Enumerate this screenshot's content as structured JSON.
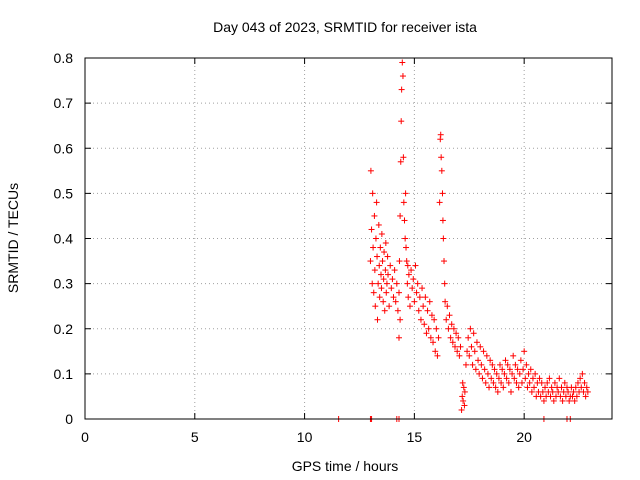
{
  "chart_data": {
    "type": "scatter",
    "title": "Day 043 of 2023, SRMTID for receiver ista",
    "xlabel": "GPS time / hours",
    "ylabel": "SRMTID / TECUs",
    "xlim": [
      0,
      24
    ],
    "ylim": [
      0,
      0.8
    ],
    "xticks": [
      0,
      5,
      10,
      15,
      20
    ],
    "xtick_labels": [
      "0",
      "5",
      "10",
      "15",
      "20"
    ],
    "yticks": [
      0,
      0.1,
      0.2,
      0.3,
      0.4,
      0.5,
      0.6,
      0.7,
      0.8
    ],
    "ytick_labels": [
      "0",
      "0.1",
      "0.2",
      "0.3",
      "0.4",
      "0.5",
      "0.6",
      "0.7",
      "0.8"
    ],
    "grid": true,
    "marker": "plus",
    "color": "#ff0000",
    "series": [
      {
        "name": "SRMTID",
        "x": [
          11.55,
          13.0,
          13.05,
          14.2,
          14.3,
          20.9,
          21.95,
          22.1,
          13.0,
          13.02,
          13.05,
          13.08,
          13.1,
          13.12,
          13.15,
          13.18,
          13.2,
          13.22,
          13.25,
          13.28,
          13.3,
          13.32,
          13.35,
          13.38,
          13.4,
          13.42,
          13.45,
          13.48,
          13.5,
          13.52,
          13.55,
          13.58,
          13.6,
          13.62,
          13.65,
          13.68,
          13.7,
          13.72,
          13.75,
          13.78,
          13.8,
          13.85,
          13.9,
          13.95,
          14.0,
          14.05,
          14.1,
          14.15,
          14.2,
          14.25,
          14.3,
          14.35,
          14.3,
          14.32,
          14.35,
          14.38,
          14.4,
          14.42,
          14.45,
          14.48,
          14.5,
          14.52,
          14.55,
          14.58,
          14.6,
          14.62,
          14.65,
          14.68,
          14.7,
          14.72,
          14.75,
          14.8,
          14.85,
          14.9,
          14.95,
          15.0,
          15.05,
          15.1,
          15.15,
          15.2,
          15.25,
          15.3,
          15.35,
          15.4,
          15.45,
          15.5,
          15.55,
          15.6,
          15.65,
          15.7,
          15.75,
          15.8,
          15.85,
          15.9,
          15.95,
          16.0,
          16.05,
          16.1,
          16.15,
          16.18,
          16.2,
          16.22,
          16.25,
          16.28,
          16.3,
          16.32,
          16.35,
          16.38,
          16.4,
          16.45,
          16.5,
          16.55,
          16.6,
          16.65,
          16.7,
          16.75,
          16.8,
          16.85,
          16.9,
          16.95,
          17.0,
          17.05,
          17.1,
          17.15,
          17.18,
          17.2,
          17.22,
          17.25,
          17.28,
          17.3,
          17.35,
          17.4,
          17.45,
          17.5,
          17.55,
          17.6,
          17.65,
          17.7,
          17.75,
          17.8,
          17.85,
          17.9,
          17.95,
          18.0,
          18.05,
          18.1,
          18.15,
          18.2,
          18.25,
          18.3,
          18.35,
          18.4,
          18.45,
          18.5,
          18.55,
          18.6,
          18.65,
          18.7,
          18.75,
          18.8,
          18.85,
          18.9,
          18.95,
          19.0,
          19.05,
          19.1,
          19.15,
          19.2,
          19.25,
          19.3,
          19.35,
          19.4,
          19.45,
          19.5,
          19.55,
          19.6,
          19.65,
          19.7,
          19.75,
          19.8,
          19.85,
          19.9,
          19.95,
          20.0,
          20.05,
          20.1,
          20.15,
          20.2,
          20.25,
          20.3,
          20.35,
          20.4,
          20.45,
          20.5,
          20.55,
          20.6,
          20.65,
          20.7,
          20.75,
          20.8,
          20.85,
          20.9,
          20.95,
          21.0,
          21.05,
          21.1,
          21.15,
          21.2,
          21.25,
          21.3,
          21.35,
          21.4,
          21.45,
          21.5,
          21.55,
          21.6,
          21.65,
          21.7,
          21.75,
          21.8,
          21.85,
          21.9,
          21.95,
          22.0,
          22.05,
          22.1,
          22.15,
          22.2,
          22.25,
          22.3,
          22.35,
          22.4,
          22.45,
          22.5,
          22.55,
          22.6,
          22.65,
          22.7,
          22.75,
          22.8,
          22.85,
          22.9
        ],
        "y": [
          0.0,
          0.0,
          0.0,
          0.0,
          0.0,
          0.0,
          0.0,
          0.0,
          0.35,
          0.55,
          0.42,
          0.3,
          0.5,
          0.38,
          0.28,
          0.45,
          0.33,
          0.25,
          0.4,
          0.48,
          0.36,
          0.22,
          0.3,
          0.43,
          0.34,
          0.27,
          0.38,
          0.32,
          0.29,
          0.41,
          0.35,
          0.26,
          0.31,
          0.37,
          0.24,
          0.33,
          0.39,
          0.28,
          0.3,
          0.36,
          0.32,
          0.25,
          0.34,
          0.29,
          0.31,
          0.27,
          0.33,
          0.26,
          0.3,
          0.24,
          0.28,
          0.22,
          0.18,
          0.35,
          0.45,
          0.57,
          0.66,
          0.73,
          0.79,
          0.76,
          0.58,
          0.48,
          0.44,
          0.4,
          0.5,
          0.38,
          0.35,
          0.3,
          0.34,
          0.27,
          0.32,
          0.25,
          0.33,
          0.29,
          0.31,
          0.26,
          0.34,
          0.28,
          0.3,
          0.24,
          0.27,
          0.22,
          0.29,
          0.25,
          0.21,
          0.27,
          0.19,
          0.24,
          0.2,
          0.26,
          0.18,
          0.23,
          0.17,
          0.22,
          0.15,
          0.2,
          0.14,
          0.18,
          0.48,
          0.62,
          0.63,
          0.58,
          0.55,
          0.5,
          0.44,
          0.4,
          0.35,
          0.3,
          0.26,
          0.22,
          0.25,
          0.2,
          0.23,
          0.18,
          0.21,
          0.17,
          0.2,
          0.16,
          0.19,
          0.15,
          0.18,
          0.14,
          0.16,
          0.02,
          0.05,
          0.08,
          0.04,
          0.07,
          0.03,
          0.06,
          0.12,
          0.15,
          0.18,
          0.14,
          0.2,
          0.16,
          0.12,
          0.19,
          0.15,
          0.11,
          0.17,
          0.13,
          0.1,
          0.16,
          0.12,
          0.09,
          0.15,
          0.11,
          0.08,
          0.14,
          0.1,
          0.07,
          0.13,
          0.09,
          0.12,
          0.08,
          0.11,
          0.07,
          0.1,
          0.06,
          0.09,
          0.12,
          0.08,
          0.11,
          0.07,
          0.1,
          0.13,
          0.09,
          0.12,
          0.08,
          0.11,
          0.06,
          0.1,
          0.14,
          0.09,
          0.12,
          0.08,
          0.11,
          0.07,
          0.1,
          0.13,
          0.08,
          0.11,
          0.15,
          0.09,
          0.12,
          0.07,
          0.1,
          0.08,
          0.11,
          0.06,
          0.09,
          0.07,
          0.1,
          0.05,
          0.08,
          0.06,
          0.09,
          0.05,
          0.08,
          0.06,
          0.04,
          0.07,
          0.05,
          0.08,
          0.06,
          0.09,
          0.05,
          0.07,
          0.06,
          0.04,
          0.08,
          0.05,
          0.07,
          0.06,
          0.09,
          0.05,
          0.07,
          0.04,
          0.06,
          0.08,
          0.05,
          0.07,
          0.06,
          0.04,
          0.05,
          0.07,
          0.05,
          0.06,
          0.04,
          0.07,
          0.05,
          0.08,
          0.06,
          0.09,
          0.07,
          0.1,
          0.06,
          0.08,
          0.05,
          0.07,
          0.06
        ]
      }
    ]
  }
}
